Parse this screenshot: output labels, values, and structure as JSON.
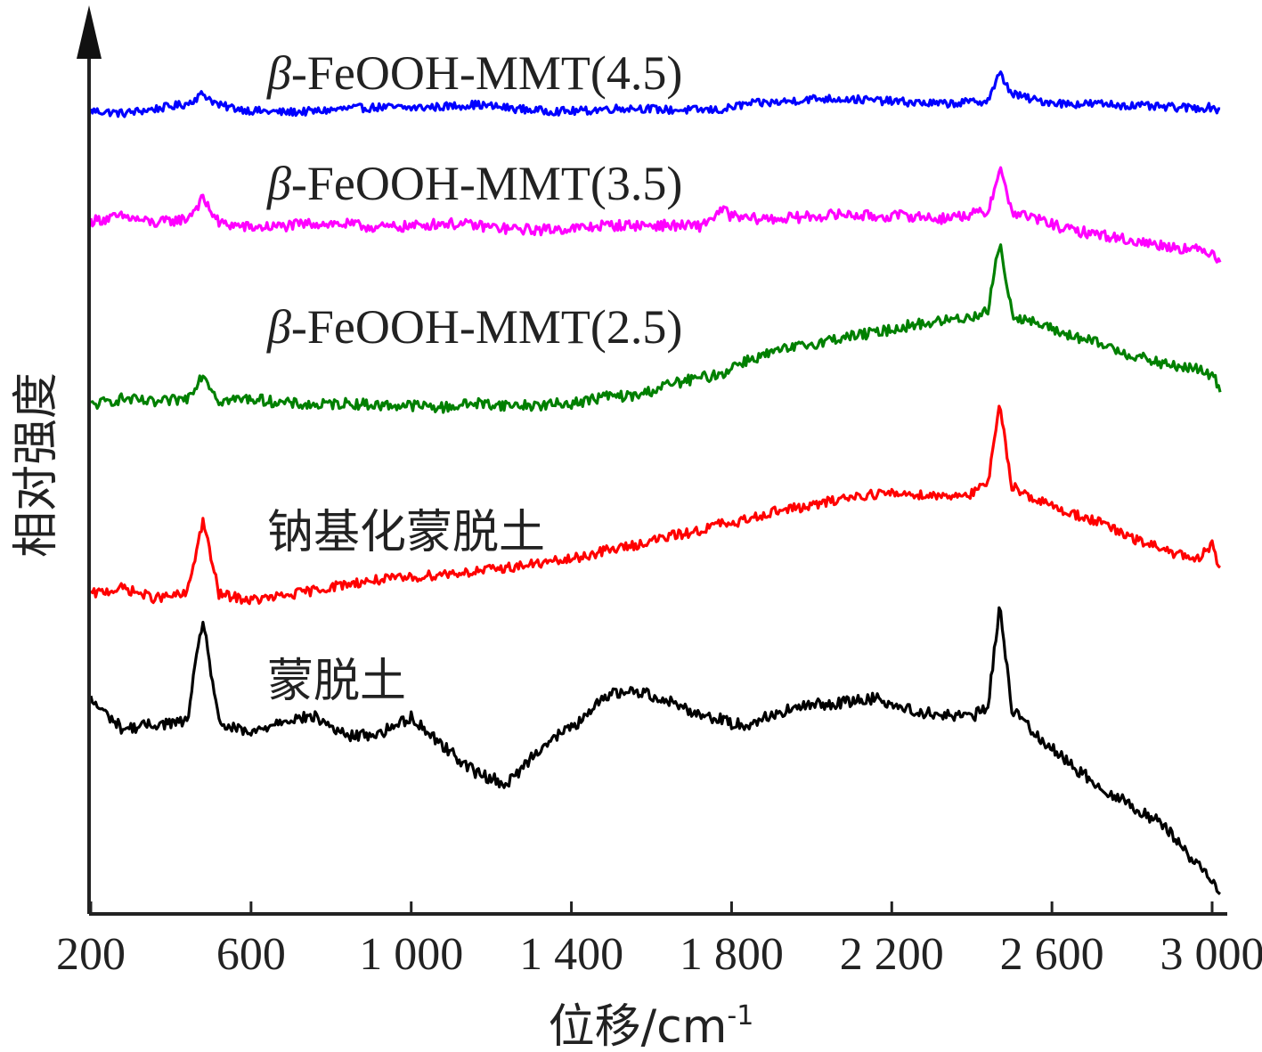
{
  "chart_data": {
    "type": "line",
    "xlabel": "位移/cm",
    "xlabel_sup": "-1",
    "ylabel": "相对强度",
    "xlim": [
      200,
      3020
    ],
    "x_ticks": [
      {
        "value": 200,
        "label": "200"
      },
      {
        "value": 600,
        "label": "600"
      },
      {
        "value": 1000,
        "label": "1 000"
      },
      {
        "value": 1400,
        "label": "1 400"
      },
      {
        "value": 1800,
        "label": "1 800"
      },
      {
        "value": 2200,
        "label": "2 200"
      },
      {
        "value": 2600,
        "label": "2 600"
      },
      {
        "value": 3000,
        "label": "3 000"
      }
    ],
    "y_ticks": "none",
    "grid": false,
    "legend": "inline labels above each curve",
    "x": [
      200,
      280,
      360,
      440,
      480,
      520,
      600,
      680,
      760,
      840,
      920,
      1000,
      1080,
      1160,
      1240,
      1320,
      1400,
      1440,
      1480,
      1560,
      1640,
      1720,
      1780,
      1800,
      1840,
      1920,
      2000,
      2080,
      2160,
      2240,
      2320,
      2400,
      2440,
      2470,
      2500,
      2560,
      2640,
      2720,
      2800,
      2880,
      2960,
      3000,
      3020
    ],
    "series": [
      {
        "name": "β-FeOOH-MMT(4.5)",
        "name_prefix": "β",
        "name_rest": "-FeOOH-MMT(4.5)",
        "color": "#0000ff",
        "values": [
          1.0,
          0.2,
          1.5,
          3.0,
          6.0,
          2.5,
          1.0,
          0.5,
          0.8,
          1.6,
          2.0,
          1.8,
          2.2,
          2.8,
          1.8,
          1.0,
          0.8,
          1.0,
          1.5,
          1.8,
          1.2,
          1.2,
          1.2,
          2.0,
          3.0,
          3.5,
          4.5,
          4.5,
          4.0,
          3.5,
          3.0,
          3.5,
          4.0,
          12.0,
          6.0,
          4.0,
          3.0,
          3.0,
          2.5,
          2.0,
          1.8,
          2.0,
          1.0
        ]
      },
      {
        "name": "β-FeOOH-MMT(3.5)",
        "name_prefix": "β",
        "name_rest": "-FeOOH-MMT(3.5)",
        "color": "#ff00ff",
        "values": [
          2.0,
          3.0,
          1.5,
          2.5,
          7.0,
          1.5,
          0.5,
          0.8,
          1.5,
          1.2,
          0.5,
          0.8,
          1.5,
          1.0,
          0.2,
          0.0,
          0.3,
          0.5,
          1.0,
          1.0,
          1.0,
          0.8,
          4.5,
          3.0,
          2.5,
          2.5,
          3.0,
          3.5,
          3.0,
          3.2,
          2.5,
          3.5,
          4.0,
          14.0,
          4.0,
          2.5,
          0.0,
          -1.0,
          -2.5,
          -3.5,
          -4.5,
          -5.0,
          -7.0
        ]
      },
      {
        "name": "β-FeOOH-MMT(2.5)",
        "name_prefix": "β",
        "name_rest": "-FeOOH-MMT(2.5)",
        "color": "#008000",
        "values": [
          0.0,
          1.5,
          0.5,
          1.5,
          7.0,
          1.0,
          1.5,
          0.5,
          0.0,
          0.5,
          0.0,
          0.0,
          -0.5,
          0.5,
          0.0,
          0.0,
          0.5,
          1.0,
          2.0,
          2.0,
          4.5,
          6.0,
          7.0,
          8.5,
          10.0,
          12.0,
          13.5,
          15.0,
          16.0,
          17.5,
          18.5,
          19.5,
          21.0,
          36.0,
          20.0,
          18.0,
          15.5,
          13.5,
          11.0,
          9.0,
          8.0,
          6.5,
          4.0
        ]
      },
      {
        "name": "钠基化蒙脱土",
        "name_prefix": "",
        "name_rest": "钠基化蒙脱土",
        "color": "#ff0000",
        "values": [
          0.0,
          1.5,
          -1.0,
          0.0,
          18.0,
          0.0,
          -1.5,
          -0.5,
          1.0,
          2.5,
          3.5,
          4.0,
          5.0,
          5.5,
          6.5,
          7.5,
          8.5,
          9.5,
          10.5,
          12.0,
          14.0,
          15.5,
          17.5,
          16.5,
          18.5,
          20.5,
          21.5,
          23.5,
          24.5,
          24.5,
          24.0,
          24.5,
          27.0,
          46.0,
          26.5,
          23.0,
          20.0,
          17.5,
          13.5,
          11.0,
          8.0,
          12.0,
          6.0
        ]
      },
      {
        "name": "蒙脱土",
        "name_prefix": "",
        "name_rest": "蒙脱土",
        "color": "#000000",
        "values": [
          10.0,
          4.0,
          5.0,
          5.5,
          27.0,
          5.0,
          3.0,
          6.0,
          6.5,
          2.5,
          3.0,
          6.5,
          0.5,
          -5.0,
          -7.5,
          0.0,
          4.5,
          6.5,
          11.0,
          12.0,
          10.0,
          7.0,
          6.0,
          5.0,
          5.0,
          7.5,
          9.0,
          9.5,
          10.5,
          8.0,
          7.0,
          6.5,
          8.5,
          30.0,
          8.0,
          3.0,
          -3.0,
          -8.0,
          -12.0,
          -16.0,
          -24.0,
          -27.0,
          -30.0
        ]
      }
    ]
  }
}
